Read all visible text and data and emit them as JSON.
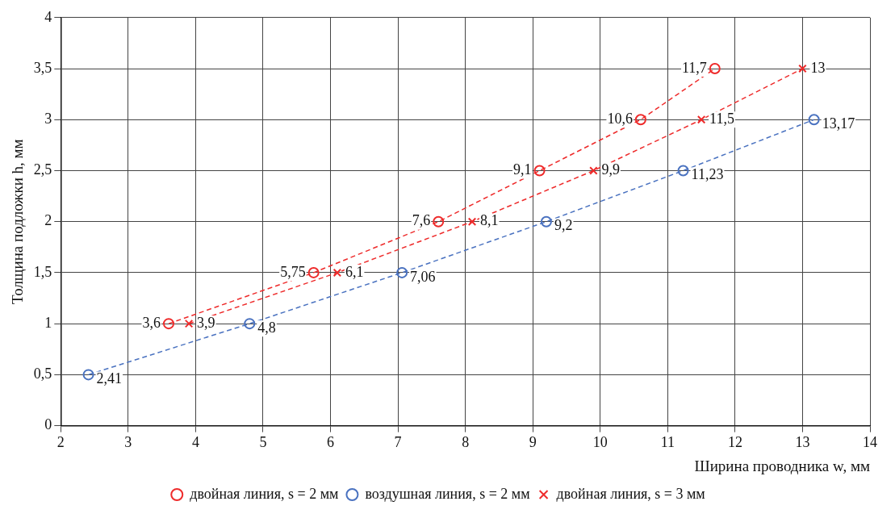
{
  "chart_data": {
    "type": "line",
    "xlabel": "Ширина проводника w, мм",
    "ylabel": "Толщина подложки h, мм",
    "xlim": [
      2,
      14
    ],
    "xticks": [
      2,
      3,
      4,
      5,
      6,
      7,
      8,
      9,
      10,
      11,
      12,
      13,
      14
    ],
    "ylim": [
      0,
      4
    ],
    "yticks": [
      0,
      {
        "value": 0.5,
        "label": "0,5"
      },
      1,
      {
        "value": 1.5,
        "label": "1,5"
      },
      2,
      {
        "value": 2.5,
        "label": "2,5"
      },
      3,
      {
        "value": 3.5,
        "label": "3,5"
      },
      4
    ],
    "annotations": [
      {
        "text": "3,6",
        "x": 3.6,
        "y": 1
      },
      {
        "text": "5,75",
        "x": 5.75,
        "y": 1.5
      },
      {
        "text": "7,6",
        "x": 7.6,
        "y": 2
      },
      {
        "text": "9,1",
        "x": 9.1,
        "y": 2.5
      },
      {
        "text": "10,6",
        "x": 10.6,
        "y": 3
      },
      {
        "text": "11,7",
        "x": 11.7,
        "y": 3.5
      },
      {
        "text": "2,41",
        "x": 2.41,
        "y": 0.5
      },
      {
        "text": "4,8",
        "x": 4.8,
        "y": 1
      },
      {
        "text": "7,06",
        "x": 7.06,
        "y": 1.5
      },
      {
        "text": "9,2",
        "x": 9.2,
        "y": 2
      },
      {
        "text": "11,23",
        "x": 11.23,
        "y": 2.5
      },
      {
        "text": "13,17",
        "x": 13.17,
        "y": 3
      },
      {
        "text": "3,9",
        "x": 3.9,
        "y": 1
      },
      {
        "text": "6,1",
        "x": 6.1,
        "y": 1.5
      },
      {
        "text": "8,1",
        "x": 8.1,
        "y": 2
      },
      {
        "text": "9,9",
        "x": 9.9,
        "y": 2.5
      },
      {
        "text": "11,5",
        "x": 11.5,
        "y": 3
      },
      {
        "text": "13",
        "x": 13,
        "y": 3.5
      }
    ],
    "grid": true,
    "legend": "bottom",
    "line_style": "dashed",
    "series": [
      {
        "name": "двойная линия, s = 2 мм",
        "color": "#ee2b2b",
        "marker": "circle",
        "x": [
          3.6,
          5.75,
          7.6,
          9.1,
          10.6,
          11.7
        ],
        "values": [
          1,
          1.5,
          2,
          2.5,
          3,
          3.5
        ]
      },
      {
        "name": "воздушная линия, s = 2 мм",
        "color": "#4a72c0",
        "marker": "circle",
        "x": [
          2.41,
          4.8,
          7.06,
          9.2,
          11.23,
          13.17
        ],
        "values": [
          0.5,
          1,
          1.5,
          2,
          2.5,
          3
        ]
      },
      {
        "name": "двойная линия, s = 3 мм",
        "color": "#ee2b2b",
        "marker": "cross",
        "x": [
          3.9,
          6.1,
          8.1,
          9.9,
          11.5,
          13
        ],
        "values": [
          1,
          1.5,
          2,
          2.5,
          3,
          3.5
        ]
      }
    ]
  }
}
